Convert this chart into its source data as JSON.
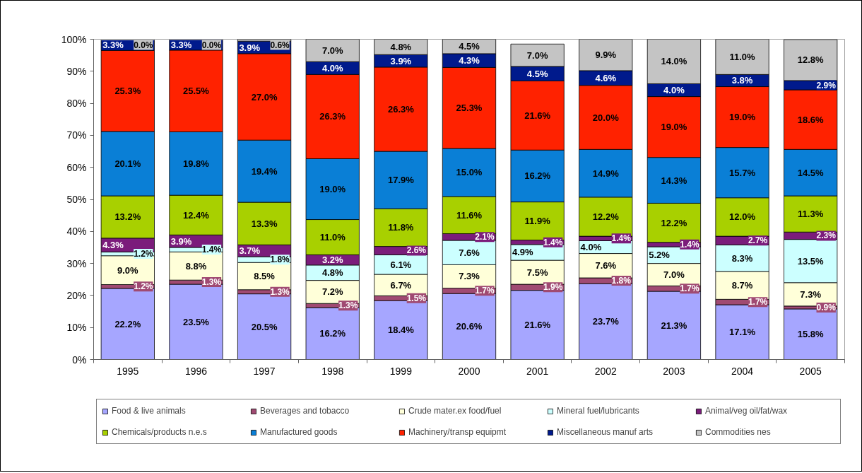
{
  "chart_data": {
    "type": "bar",
    "stacked": true,
    "categories": [
      "1995",
      "1996",
      "1997",
      "1998",
      "1999",
      "2000",
      "2001",
      "2002",
      "2003",
      "2004",
      "2005"
    ],
    "ylim": [
      0,
      100
    ],
    "yticks": [
      {
        "value": 0,
        "label": "0%"
      },
      {
        "value": 10,
        "label": "10%"
      },
      {
        "value": 20,
        "label": "20%"
      },
      {
        "value": 30,
        "label": "30%"
      },
      {
        "value": 40,
        "label": "40%"
      },
      {
        "value": 50,
        "label": "50%"
      },
      {
        "value": 60,
        "label": "60%"
      },
      {
        "value": 70,
        "label": "70%"
      },
      {
        "value": 80,
        "label": "80%"
      },
      {
        "value": 90,
        "label": "90%"
      },
      {
        "value": 100,
        "label": "100%"
      }
    ],
    "legend": "bottom",
    "series": [
      {
        "name": "Food & live animals",
        "color": "#a6a6ff",
        "values": [
          22.2,
          23.5,
          20.5,
          16.2,
          18.4,
          20.6,
          21.6,
          23.7,
          21.3,
          17.1,
          15.8
        ],
        "value_labels": [
          "22.2%",
          "23.5%",
          "20.5%",
          "16.2%",
          "18.4%",
          "20.6%",
          "21.6%",
          "23.7%",
          "21.3%",
          "17.1%",
          "15.8%"
        ]
      },
      {
        "name": "Beverages and tobacco",
        "color": "#a04a72",
        "values": [
          1.2,
          1.3,
          1.3,
          1.3,
          1.5,
          1.7,
          1.9,
          1.8,
          1.7,
          1.7,
          0.9
        ],
        "value_labels": [
          "1.2%",
          "1.3%",
          "1.3%",
          "1.3%",
          "1.5%",
          "1.7%",
          "1.9%",
          "1.8%",
          "1.7%",
          "1.7%",
          "0.9%"
        ]
      },
      {
        "name": "Crude mater.ex food/fuel",
        "color": "#ffffd9",
        "values": [
          9.0,
          8.8,
          8.5,
          7.2,
          6.7,
          7.3,
          7.5,
          7.6,
          7.0,
          8.7,
          7.3
        ],
        "value_labels": [
          "9.0%",
          "8.8%",
          "8.5%",
          "7.2%",
          "6.7%",
          "7.3%",
          "7.5%",
          "7.6%",
          "7.0%",
          "8.7%",
          "7.3%"
        ]
      },
      {
        "name": "Mineral fuel/lubricants",
        "color": "#ccffff",
        "values": [
          1.2,
          1.4,
          1.8,
          4.8,
          6.1,
          7.6,
          4.9,
          4.0,
          5.2,
          8.3,
          13.5
        ],
        "value_labels": [
          "1.2%",
          "1.4%",
          "1.8%",
          "4.8%",
          "6.1%",
          "7.6%",
          "4.9%",
          "4.0%",
          "5.2%",
          "8.3%",
          "13.5%"
        ]
      },
      {
        "name": "Animal/veg oil/fat/wax",
        "color": "#7b1c7b",
        "values": [
          4.3,
          3.9,
          3.7,
          3.2,
          2.6,
          2.1,
          1.4,
          1.4,
          1.4,
          2.7,
          2.3
        ],
        "value_labels": [
          "4.3%",
          "3.9%",
          "3.7%",
          "3.2%",
          "2.6%",
          "2.1%",
          "1.4%",
          "1.4%",
          "1.4%",
          "2.7%",
          "2.3%"
        ]
      },
      {
        "name": "Chemicals/products n.e.s",
        "color": "#a8d000",
        "values": [
          13.2,
          12.4,
          13.3,
          11.0,
          11.8,
          11.6,
          11.9,
          12.2,
          12.2,
          12.0,
          11.3
        ],
        "value_labels": [
          "13.2%",
          "12.4%",
          "13.3%",
          "11.0%",
          "11.8%",
          "11.6%",
          "11.9%",
          "12.2%",
          "12.2%",
          "12.0%",
          "11.3%"
        ]
      },
      {
        "name": "Manufactured goods",
        "color": "#0a7fd6",
        "values": [
          20.1,
          19.8,
          19.4,
          19.0,
          17.9,
          15.0,
          16.2,
          14.9,
          14.3,
          15.7,
          14.5
        ],
        "value_labels": [
          "20.1%",
          "19.8%",
          "19.4%",
          "19.0%",
          "17.9%",
          "15.0%",
          "16.2%",
          "14.9%",
          "14.3%",
          "15.7%",
          "14.5%"
        ]
      },
      {
        "name": "Machinery/transp equipmt",
        "color": "#ff2200",
        "values": [
          25.3,
          25.5,
          27.0,
          26.3,
          26.3,
          25.3,
          21.6,
          20.0,
          19.0,
          19.0,
          18.6
        ],
        "value_labels": [
          "25.3%",
          "25.5%",
          "27.0%",
          "26.3%",
          "26.3%",
          "25.3%",
          "21.6%",
          "20.0%",
          "19.0%",
          "19.0%",
          "18.6%"
        ]
      },
      {
        "name": "Miscellaneous manuf arts",
        "color": "#001a8c",
        "values": [
          3.3,
          3.3,
          3.9,
          4.0,
          3.9,
          4.3,
          4.5,
          4.6,
          4.0,
          3.8,
          2.9
        ],
        "value_labels": [
          "3.3%",
          "3.3%",
          "3.9%",
          "4.0%",
          "3.9%",
          "4.3%",
          "4.5%",
          "4.6%",
          "4.0%",
          "3.8%",
          "2.9%"
        ]
      },
      {
        "name": "Commodities nes",
        "color": "#c4c4c4",
        "values": [
          0.0,
          0.0,
          0.6,
          7.0,
          4.8,
          4.5,
          7.0,
          9.9,
          14.0,
          11.0,
          12.8
        ],
        "value_labels": [
          "0.0%",
          "0.0%",
          "0.6%",
          "7.0%",
          "4.8%",
          "4.5%",
          "7.0%",
          "9.9%",
          "14.0%",
          "11.0%",
          "12.8%"
        ]
      }
    ]
  }
}
